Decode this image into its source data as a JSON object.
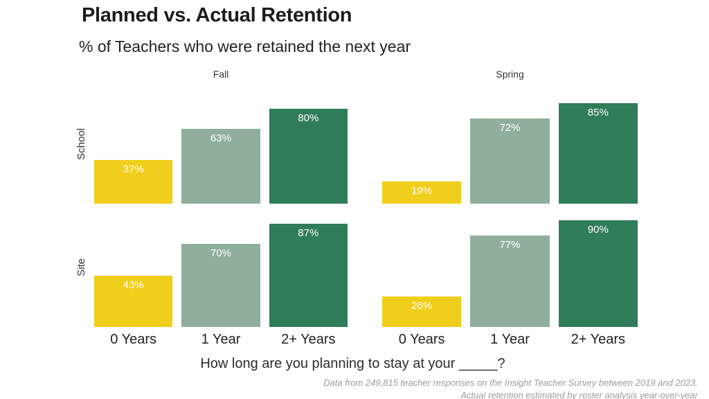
{
  "header": {
    "title": "Planned vs. Actual Retention",
    "subtitle": "% of Teachers who were retained the next year"
  },
  "chart_data": {
    "type": "bar",
    "title": "Planned vs. Actual Retention",
    "subtitle": "% of Teachers who were retained the next year",
    "facet_columns": [
      "Fall",
      "Spring"
    ],
    "facet_rows": [
      "School",
      "Site"
    ],
    "categories": [
      "0 Years",
      "1 Year",
      "2+ Years"
    ],
    "series": [
      {
        "facet_row": "School",
        "facet_col": "Fall",
        "values": [
          37,
          63,
          80
        ]
      },
      {
        "facet_row": "School",
        "facet_col": "Spring",
        "values": [
          19,
          72,
          85
        ]
      },
      {
        "facet_row": "Site",
        "facet_col": "Fall",
        "values": [
          43,
          70,
          87
        ]
      },
      {
        "facet_row": "Site",
        "facet_col": "Spring",
        "values": [
          26,
          77,
          90
        ]
      }
    ],
    "bar_colors": [
      "#F0CE1C",
      "#8FAF9C",
      "#2F7D59"
    ],
    "value_suffix": "%",
    "value_label_color": "#FFFFFF",
    "ylim": [
      0,
      100
    ],
    "grid": false,
    "legend": false,
    "xlabel": "How long are you planning to stay at your _____?",
    "ylabel": ""
  },
  "footnote": {
    "line1": "Data from 249,815 teacher responses on the Insight Teacher Survey between 2019 and 2023.",
    "line2": "Actual retention estimated by roster analysis year-over-year"
  }
}
